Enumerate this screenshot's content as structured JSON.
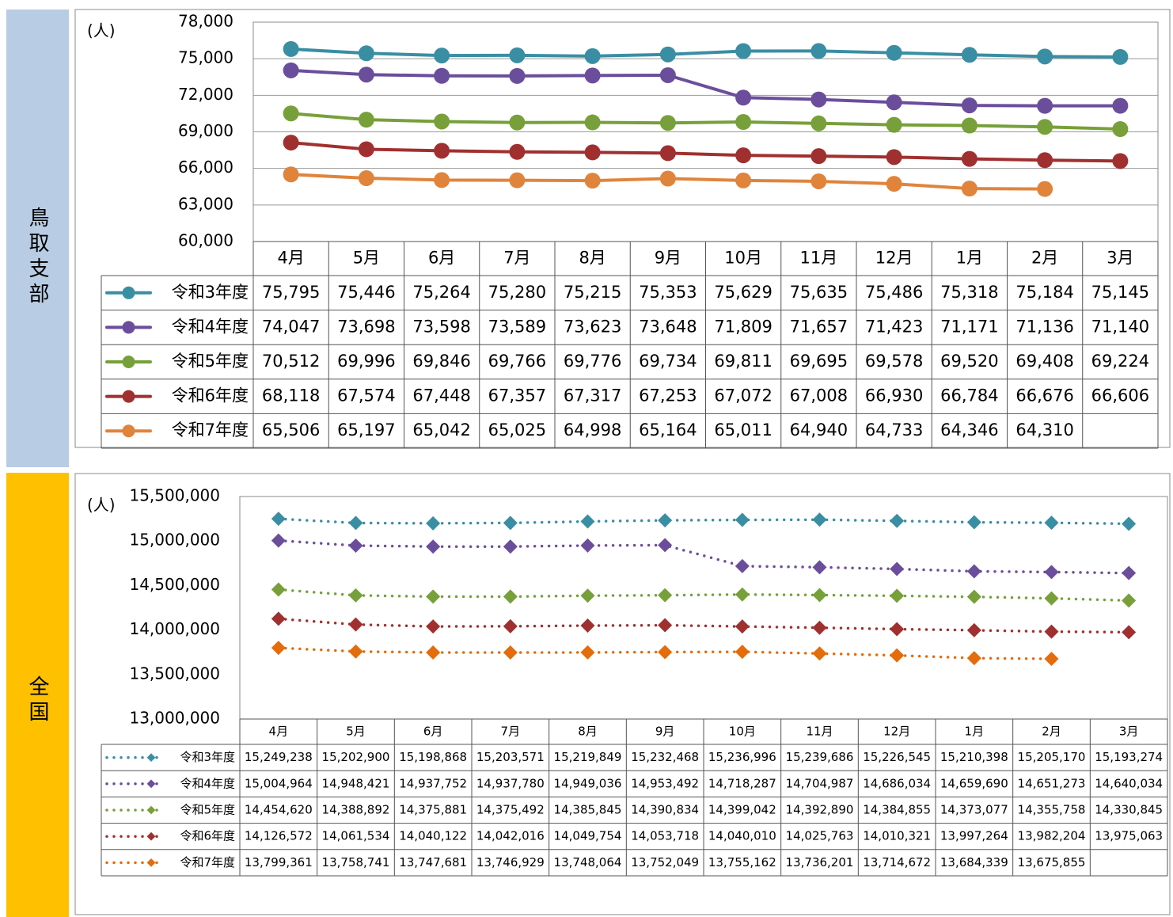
{
  "chart_data": [
    {
      "type": "line",
      "section": "鳥取支部",
      "y_label": "(人)",
      "grid": true,
      "line_style": "solid",
      "marker": "circle",
      "categories": [
        "4月",
        "5月",
        "6月",
        "7月",
        "8月",
        "9月",
        "10月",
        "11月",
        "12月",
        "1月",
        "2月",
        "3月"
      ],
      "ylim": [
        60000,
        78000
      ],
      "yticks": [
        {
          "value": 60000,
          "label": "60,000"
        },
        {
          "value": 63000,
          "label": "63,000"
        },
        {
          "value": 66000,
          "label": "66,000"
        },
        {
          "value": 69000,
          "label": "69,000"
        },
        {
          "value": 72000,
          "label": "72,000"
        },
        {
          "value": 75000,
          "label": "75,000"
        },
        {
          "value": 78000,
          "label": "78,000"
        }
      ],
      "series": [
        {
          "name": "令和3年度",
          "color": "#3a8ea3",
          "values": [
            75795,
            75446,
            75264,
            75280,
            75215,
            75353,
            75629,
            75635,
            75486,
            75318,
            75184,
            75145
          ],
          "value_labels": [
            "75,795",
            "75,446",
            "75,264",
            "75,280",
            "75,215",
            "75,353",
            "75,629",
            "75,635",
            "75,486",
            "75,318",
            "75,184",
            "75,145"
          ]
        },
        {
          "name": "令和4年度",
          "color": "#6b4e9b",
          "values": [
            74047,
            73698,
            73598,
            73589,
            73623,
            73648,
            71809,
            71657,
            71423,
            71171,
            71136,
            71140
          ],
          "value_labels": [
            "74,047",
            "73,698",
            "73,598",
            "73,589",
            "73,623",
            "73,648",
            "71,809",
            "71,657",
            "71,423",
            "71,171",
            "71,136",
            "71,140"
          ]
        },
        {
          "name": "令和5年度",
          "color": "#77a03a",
          "values": [
            70512,
            69996,
            69846,
            69766,
            69776,
            69734,
            69811,
            69695,
            69578,
            69520,
            69408,
            69224
          ],
          "value_labels": [
            "70,512",
            "69,996",
            "69,846",
            "69,766",
            "69,776",
            "69,734",
            "69,811",
            "69,695",
            "69,578",
            "69,520",
            "69,408",
            "69,224"
          ]
        },
        {
          "name": "令和6年度",
          "color": "#a0302f",
          "values": [
            68118,
            67574,
            67448,
            67357,
            67317,
            67253,
            67072,
            67008,
            66930,
            66784,
            66676,
            66606
          ],
          "value_labels": [
            "68,118",
            "67,574",
            "67,448",
            "67,357",
            "67,317",
            "67,253",
            "67,072",
            "67,008",
            "66,930",
            "66,784",
            "66,676",
            "66,606"
          ]
        },
        {
          "name": "令和7年度",
          "color": "#e0843c",
          "values": [
            65506,
            65197,
            65042,
            65025,
            64998,
            65164,
            65011,
            64940,
            64733,
            64346,
            64310,
            null
          ],
          "value_labels": [
            "65,506",
            "65,197",
            "65,042",
            "65,025",
            "64,998",
            "65,164",
            "65,011",
            "64,940",
            "64,733",
            "64,346",
            "64,310",
            null
          ]
        }
      ]
    },
    {
      "type": "line",
      "section": "全国",
      "y_label": "(人)",
      "grid": false,
      "line_style": "dotted",
      "marker": "diamond",
      "categories": [
        "4月",
        "5月",
        "6月",
        "7月",
        "8月",
        "9月",
        "10月",
        "11月",
        "12月",
        "1月",
        "2月",
        "3月"
      ],
      "ylim": [
        13000000,
        15500000
      ],
      "yticks": [
        {
          "value": 13000000,
          "label": "13,000,000"
        },
        {
          "value": 13500000,
          "label": "13,500,000"
        },
        {
          "value": 14000000,
          "label": "14,000,000"
        },
        {
          "value": 14500000,
          "label": "14,500,000"
        },
        {
          "value": 15000000,
          "label": "15,000,000"
        },
        {
          "value": 15500000,
          "label": "15,500,000"
        }
      ],
      "series": [
        {
          "name": "令和3年度",
          "color": "#3a8ea3",
          "values": [
            15249238,
            15202900,
            15198868,
            15203571,
            15219849,
            15232468,
            15236996,
            15239686,
            15226545,
            15210398,
            15205170,
            15193274
          ],
          "value_labels": [
            "15,249,238",
            "15,202,900",
            "15,198,868",
            "15,203,571",
            "15,219,849",
            "15,232,468",
            "15,236,996",
            "15,239,686",
            "15,226,545",
            "15,210,398",
            "15,205,170",
            "15,193,274"
          ]
        },
        {
          "name": "令和4年度",
          "color": "#6b4e9b",
          "values": [
            15004964,
            14948421,
            14937752,
            14937780,
            14949036,
            14953492,
            14718287,
            14704987,
            14686034,
            14659690,
            14651273,
            14640034
          ],
          "value_labels": [
            "15,004,964",
            "14,948,421",
            "14,937,752",
            "14,937,780",
            "14,949,036",
            "14,953,492",
            "14,718,287",
            "14,704,987",
            "14,686,034",
            "14,659,690",
            "14,651,273",
            "14,640,034"
          ]
        },
        {
          "name": "令和5年度",
          "color": "#77a03a",
          "values": [
            14454620,
            14388892,
            14375881,
            14375492,
            14385845,
            14390834,
            14399042,
            14392890,
            14384855,
            14373077,
            14355758,
            14330845
          ],
          "value_labels": [
            "14,454,620",
            "14,388,892",
            "14,375,881",
            "14,375,492",
            "14,385,845",
            "14,390,834",
            "14,399,042",
            "14,392,890",
            "14,384,855",
            "14,373,077",
            "14,355,758",
            "14,330,845"
          ]
        },
        {
          "name": "令和6年度",
          "color": "#a0302f",
          "values": [
            14126572,
            14061534,
            14040122,
            14042016,
            14049754,
            14053718,
            14040010,
            14025763,
            14010321,
            13997264,
            13982204,
            13975063
          ],
          "value_labels": [
            "14,126,572",
            "14,061,534",
            "14,040,122",
            "14,042,016",
            "14,049,754",
            "14,053,718",
            "14,040,010",
            "14,025,763",
            "14,010,321",
            "13,997,264",
            "13,982,204",
            "13,975,063"
          ]
        },
        {
          "name": "令和7年度",
          "color": "#e46c0a",
          "values": [
            13799361,
            13758741,
            13747681,
            13746929,
            13748064,
            13752049,
            13755162,
            13736201,
            13714672,
            13684339,
            13675855,
            null
          ],
          "value_labels": [
            "13,799,361",
            "13,758,741",
            "13,747,681",
            "13,746,929",
            "13,748,064",
            "13,752,049",
            "13,755,162",
            "13,736,201",
            "13,714,672",
            "13,684,339",
            "13,675,855",
            null
          ]
        }
      ]
    }
  ]
}
